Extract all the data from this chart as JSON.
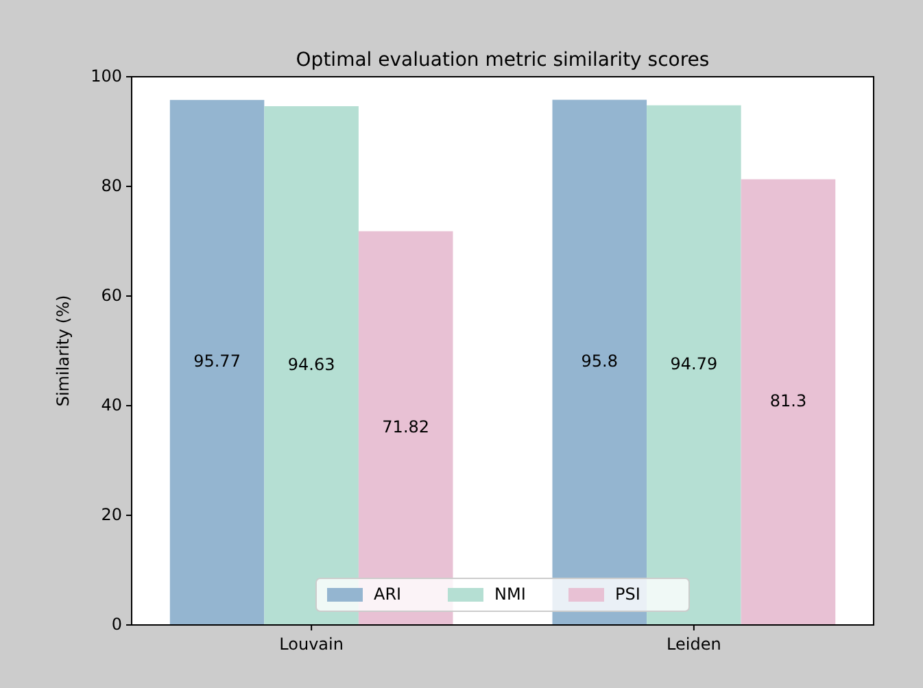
{
  "chart_data": {
    "type": "bar",
    "title": "Optimal evaluation metric similarity scores",
    "ylabel": "Similarity (%)",
    "categories": [
      "Louvain",
      "Leiden"
    ],
    "series": [
      {
        "name": "ARI",
        "color": "#94b5d0",
        "values": [
          95.77,
          95.8
        ]
      },
      {
        "name": "NMI",
        "color": "#b5dfd3",
        "values": [
          94.63,
          94.79
        ]
      },
      {
        "name": "PSI",
        "color": "#e8c1d4",
        "values": [
          71.82,
          81.3
        ]
      }
    ],
    "ylim": [
      0,
      100
    ],
    "yticks": [
      0,
      20,
      40,
      60,
      80,
      100
    ],
    "data_labels": true,
    "legend": "bottom"
  }
}
